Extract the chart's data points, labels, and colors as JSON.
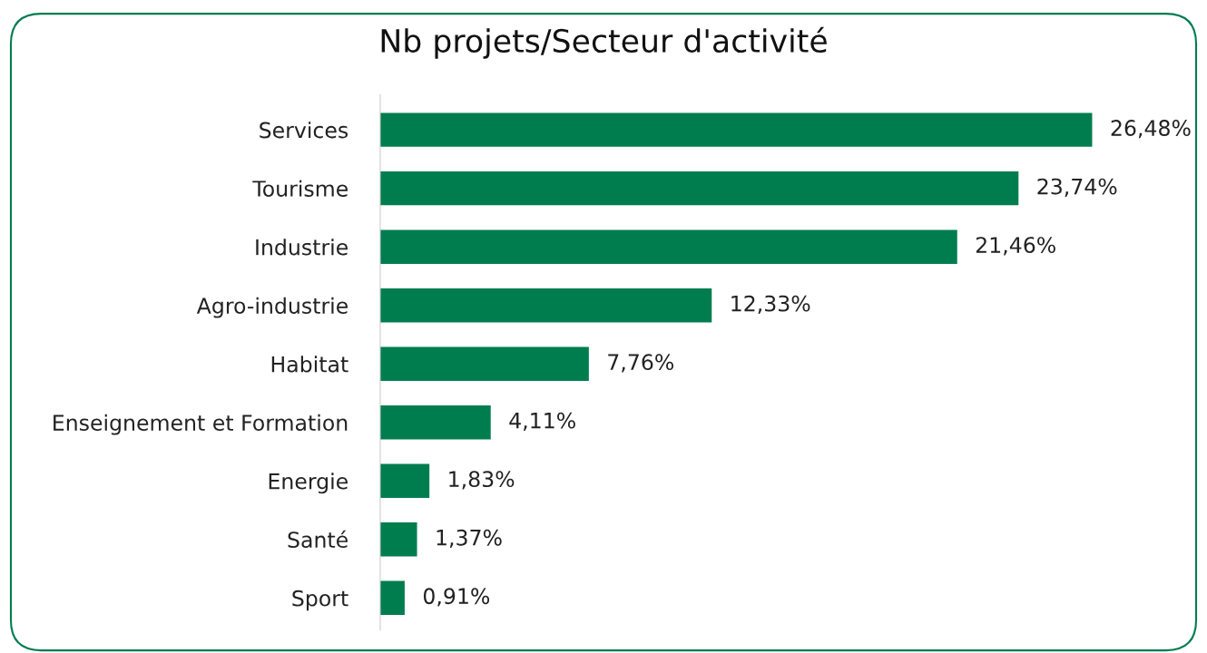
{
  "chart_data": {
    "type": "bar",
    "orientation": "horizontal",
    "title": "Nb projets/Secteur d'activité",
    "categories": [
      "Services",
      "Tourisme",
      "Industrie",
      "Agro-industrie",
      "Habitat",
      "Enseignement et Formation",
      "Energie",
      "Santé",
      "Sport"
    ],
    "values": [
      26.48,
      23.74,
      21.46,
      12.33,
      7.76,
      4.11,
      1.83,
      1.37,
      0.91
    ],
    "value_labels": [
      "26,48%",
      "23,74%",
      "21,46%",
      "12,33%",
      "7,76%",
      "4,11%",
      "1,83%",
      "1,37%",
      "0,91%"
    ],
    "color": "#007d4f",
    "grid": false,
    "legend": false
  }
}
